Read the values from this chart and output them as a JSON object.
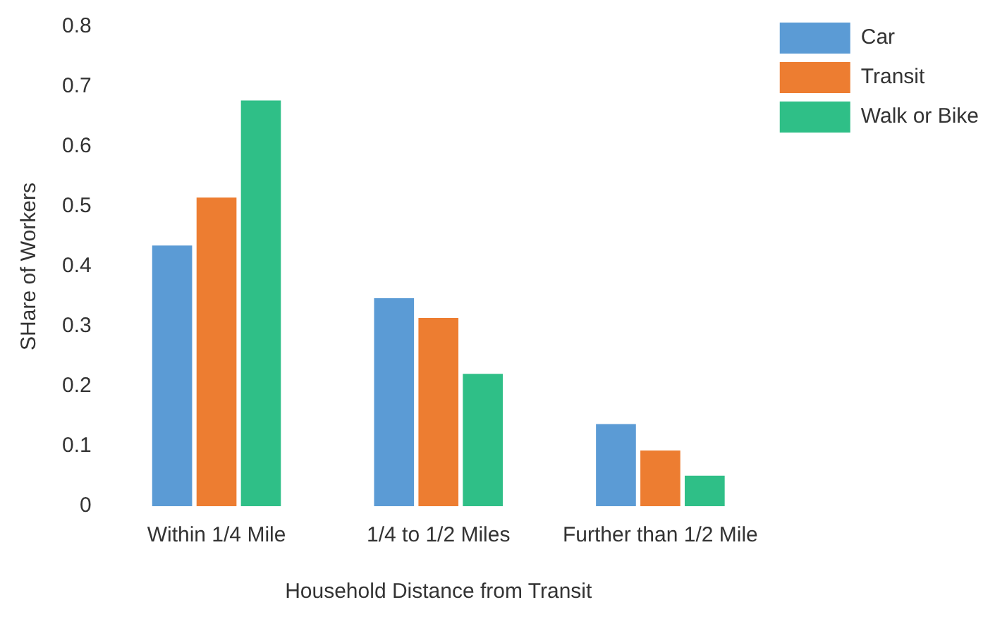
{
  "chart_data": {
    "type": "bar",
    "xlabel": "Household Distance from Transit",
    "ylabel": "SHare of Workers",
    "categories": [
      "Within 1/4 Mile",
      "1/4 to 1/2 Miles",
      "Further than 1/2 Mile"
    ],
    "series": [
      {
        "name": "Car",
        "color": "#5b9bd5",
        "values": [
          0.435,
          0.347,
          0.137
        ]
      },
      {
        "name": "Transit",
        "color": "#ed7d31",
        "values": [
          0.515,
          0.314,
          0.093
        ]
      },
      {
        "name": "Walk or Bike",
        "color": "#2fbf87",
        "values": [
          0.677,
          0.221,
          0.051
        ]
      }
    ],
    "ylim": [
      0,
      0.8
    ],
    "yticks": [
      0,
      0.1,
      0.2,
      0.3,
      0.4,
      0.5,
      0.6,
      0.7,
      0.8
    ],
    "grid": false,
    "legend": "top right"
  }
}
